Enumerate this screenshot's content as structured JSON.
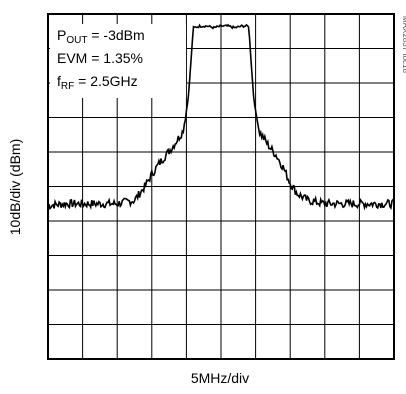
{
  "chart_data": {
    "type": "line",
    "xlabel": "5MHz/div",
    "ylabel": "10dB/div (dBm)",
    "x_divisions": 10,
    "y_divisions": 10,
    "x_unit_per_div_mhz": 5,
    "y_unit_per_div_db": 10,
    "grid": true,
    "annotation": {
      "line1_main": "P",
      "line1_sub": "OUT",
      "line1_rest": " = -3dBm",
      "line2": "EVM = 1.35%",
      "line3_main": "f",
      "line3_sub": "RF",
      "line3_rest": " = 2.5GHz"
    },
    "part_id": "MAX2837 toc18",
    "series": [
      {
        "x_div": [
          0,
          0.5,
          1,
          1.5,
          2,
          2.5,
          2.8,
          3.0,
          3.2,
          3.4,
          3.6,
          3.9,
          4.05,
          4.2,
          4.4,
          4.6,
          4.8,
          5.0,
          5.2,
          5.4,
          5.6,
          5.8,
          5.95,
          6.1,
          6.4,
          6.6,
          6.8,
          7.0,
          7.2,
          7.5,
          8.0,
          8.5,
          9.0,
          9.5,
          10
        ],
        "y_div": [
          4.45,
          4.5,
          4.5,
          4.5,
          4.5,
          4.6,
          5.0,
          5.35,
          5.65,
          5.9,
          6.15,
          6.6,
          7.5,
          9.6,
          9.65,
          9.65,
          9.6,
          9.65,
          9.65,
          9.6,
          9.65,
          9.65,
          7.5,
          6.6,
          6.15,
          5.9,
          5.55,
          5.1,
          4.8,
          4.6,
          4.5,
          4.5,
          4.5,
          4.5,
          4.5
        ]
      }
    ]
  }
}
